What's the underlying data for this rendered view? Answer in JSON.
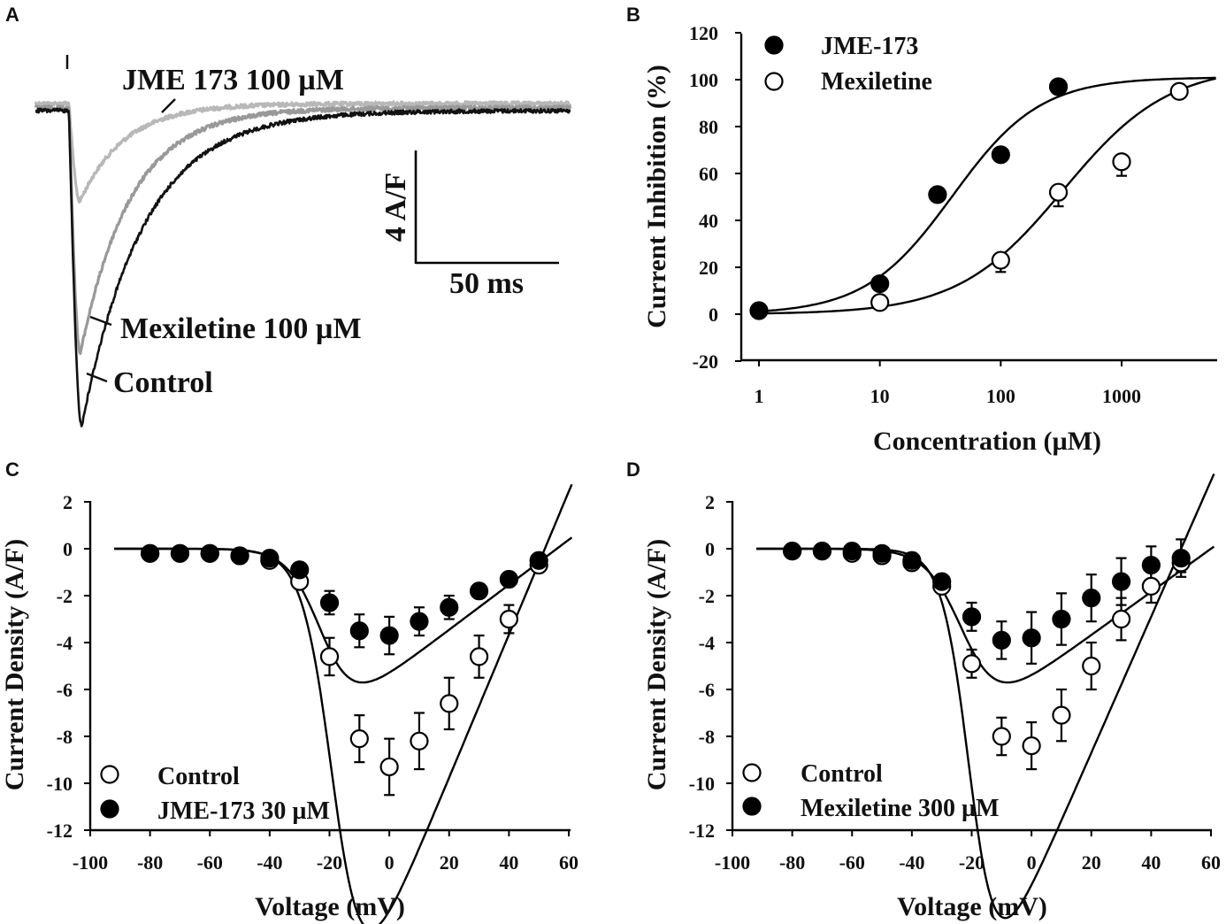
{
  "panels": {
    "a": {
      "letter": "A"
    },
    "b": {
      "letter": "B"
    },
    "c": {
      "letter": "C"
    },
    "d": {
      "letter": "D"
    }
  },
  "colors": {
    "control_trace": "#111111",
    "mexiletine_trace": "#999999",
    "jme_trace": "#b8b8b8",
    "marker_filled": "#000000",
    "marker_open": "#ffffff"
  },
  "chart_data": [
    {
      "id": "A",
      "type": "line",
      "title": "",
      "series": [
        {
          "name": "Control",
          "label": "Control",
          "peak_A_per_F": -11.3,
          "tau_ms": 22,
          "baseline": 0
        },
        {
          "name": "Mexiletine 100 µM",
          "label": "Mexiletine 100 µM",
          "peak_A_per_F": -8.8,
          "tau_ms": 18,
          "baseline": 0.1
        },
        {
          "name": "JME 173 100 µM",
          "label": "JME 173 100 µM",
          "peak_A_per_F": -3.5,
          "tau_ms": 16,
          "baseline": 0.25
        }
      ],
      "scale_bar": {
        "y_label": "4 A/F",
        "y_value": 4,
        "x_label": "50 ms",
        "x_value": 50
      }
    },
    {
      "id": "B",
      "type": "scatter",
      "xscale": "log",
      "xlabel": "Concentration (µM)",
      "ylabel": "Current Inhibition (%)",
      "xticks": [
        "1",
        "10",
        "100",
        "1000"
      ],
      "xtick_values": [
        1,
        10,
        100,
        1000
      ],
      "xlim": [
        0.8,
        6500
      ],
      "yticks": [
        "-20",
        "0",
        "20",
        "40",
        "60",
        "80",
        "100",
        "120"
      ],
      "ytick_values": [
        -20,
        0,
        20,
        40,
        60,
        80,
        100,
        120
      ],
      "ylim": [
        -20,
        120
      ],
      "legend": [
        "JME-173",
        "Mexiletine"
      ],
      "series": [
        {
          "name": "JME-173",
          "filled": true,
          "x": [
            1,
            10,
            30,
            100,
            300
          ],
          "y": [
            1.5,
            13,
            51,
            68,
            97
          ],
          "err": [
            0,
            0,
            0,
            0,
            0
          ],
          "fit": {
            "ic50": 40,
            "hill": 1.2,
            "top": 101
          }
        },
        {
          "name": "Mexiletine",
          "filled": false,
          "x": [
            10,
            100,
            300,
            1000,
            3000
          ],
          "y": [
            5,
            23,
            52,
            65,
            95
          ],
          "err": [
            0,
            5,
            6,
            6,
            2
          ],
          "fit": {
            "ic50": 330,
            "hill": 1.0,
            "top": 106
          }
        }
      ]
    },
    {
      "id": "C",
      "type": "scatter",
      "xlabel": "Voltage (mV)",
      "ylabel": "Current Density (A/F)",
      "xticks": [
        "-100",
        "-80",
        "-60",
        "-40",
        "-20",
        "0",
        "20",
        "40",
        "60"
      ],
      "xtick_values": [
        -100,
        -80,
        -60,
        -40,
        -20,
        0,
        20,
        40,
        60
      ],
      "xlim": [
        -100,
        60
      ],
      "yticks": [
        "2",
        "0",
        "-2",
        "-4",
        "-6",
        "-8",
        "-10",
        "-12"
      ],
      "ytick_values": [
        2,
        0,
        -2,
        -4,
        -6,
        -8,
        -10,
        -12
      ],
      "ylim": [
        -12,
        2
      ],
      "legend": [
        "Control",
        "JME-173 30 µM"
      ],
      "series": [
        {
          "name": "Control",
          "filled": false,
          "x": [
            -80,
            -70,
            -60,
            -50,
            -40,
            -30,
            -20,
            -10,
            0,
            10,
            20,
            30,
            40,
            50
          ],
          "y": [
            -0.2,
            -0.2,
            -0.2,
            -0.3,
            -0.5,
            -1.4,
            -4.6,
            -8.1,
            -9.3,
            -8.2,
            -6.6,
            -4.6,
            -3.0,
            -0.7
          ],
          "err": [
            0,
            0,
            0,
            0,
            0.1,
            0.3,
            0.8,
            1.0,
            1.2,
            1.2,
            1.1,
            0.9,
            0.6,
            0.3
          ],
          "fit": {
            "gmax": 0.305,
            "vrev": 52,
            "vhalf": -18,
            "k": 5
          }
        },
        {
          "name": "JME-173 30 µM",
          "filled": true,
          "x": [
            -80,
            -70,
            -60,
            -50,
            -40,
            -30,
            -20,
            -10,
            0,
            10,
            20,
            30,
            40,
            50
          ],
          "y": [
            -0.2,
            -0.2,
            -0.2,
            -0.3,
            -0.4,
            -0.9,
            -2.3,
            -3.5,
            -3.7,
            -3.1,
            -2.5,
            -1.8,
            -1.3,
            -0.5
          ],
          "err": [
            0,
            0,
            0,
            0,
            0.1,
            0.2,
            0.5,
            0.7,
            0.8,
            0.6,
            0.5,
            0.3,
            0.2,
            0.2
          ],
          "fit": {
            "gmax": 0.096,
            "vrev": 56,
            "vhalf": -22,
            "k": 5.5
          }
        }
      ]
    },
    {
      "id": "D",
      "type": "scatter",
      "xlabel": "Voltage (mV)",
      "ylabel": "Current Density (A/F)",
      "xticks": [
        "-100",
        "-80",
        "-60",
        "-40",
        "-20",
        "0",
        "20",
        "40",
        "60"
      ],
      "xtick_values": [
        -100,
        -80,
        -60,
        -40,
        -20,
        0,
        20,
        40,
        60
      ],
      "xlim": [
        -100,
        60
      ],
      "yticks": [
        "2",
        "0",
        "-2",
        "-4",
        "-6",
        "-8",
        "-10",
        "-12"
      ],
      "ytick_values": [
        2,
        0,
        -2,
        -4,
        -6,
        -8,
        -10,
        -12
      ],
      "ylim": [
        -12,
        2
      ],
      "legend": [
        "Control",
        "Mexiletine 300 µM"
      ],
      "series": [
        {
          "name": "Control",
          "filled": false,
          "x": [
            -80,
            -70,
            -60,
            -50,
            -40,
            -30,
            -20,
            -10,
            0,
            10,
            20,
            30,
            40,
            50
          ],
          "y": [
            -0.1,
            -0.1,
            -0.2,
            -0.3,
            -0.6,
            -1.6,
            -4.9,
            -8.0,
            -8.4,
            -7.1,
            -5.0,
            -3.0,
            -1.6,
            -0.6
          ],
          "err": [
            0,
            0,
            0,
            0,
            0.1,
            0.3,
            0.6,
            0.8,
            1.0,
            1.1,
            1.0,
            0.9,
            0.7,
            0.4
          ],
          "fit": {
            "gmax": 0.29,
            "vrev": 50,
            "vhalf": -20,
            "k": 4.5
          }
        },
        {
          "name": "Mexiletine 300 µM",
          "filled": true,
          "x": [
            -80,
            -70,
            -60,
            -50,
            -40,
            -30,
            -20,
            -10,
            0,
            10,
            20,
            30,
            40,
            50
          ],
          "y": [
            -0.1,
            -0.1,
            -0.1,
            -0.2,
            -0.5,
            -1.4,
            -2.9,
            -3.9,
            -3.8,
            -3.0,
            -2.1,
            -1.4,
            -0.7,
            -0.4
          ],
          "err": [
            0,
            0,
            0,
            0,
            0.1,
            0.3,
            0.6,
            0.8,
            1.1,
            1.1,
            1.0,
            1.0,
            0.8,
            0.8
          ],
          "fit": {
            "gmax": 0.092,
            "vrev": 60,
            "vhalf": -22,
            "k": 6
          }
        }
      ]
    }
  ]
}
